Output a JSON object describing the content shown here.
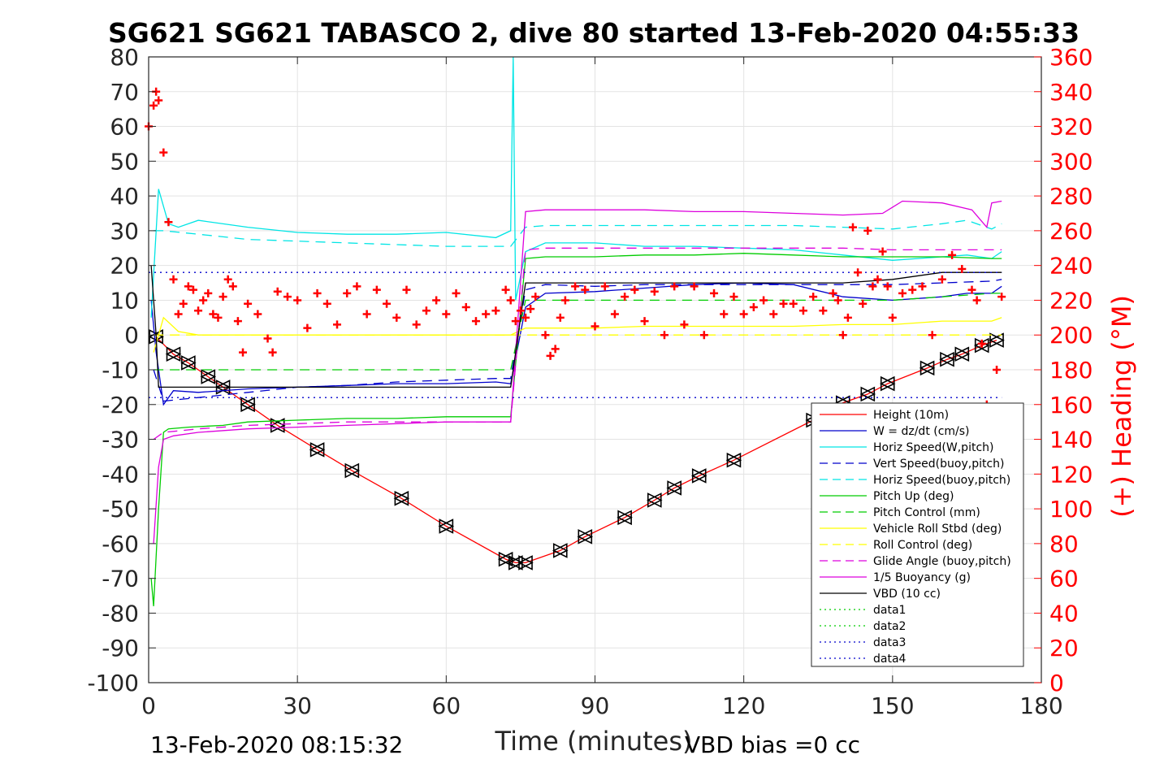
{
  "chart_data": {
    "type": "line",
    "title": "SG621 SG621 TABASCO 2, dive 80 started 13-Feb-2020 04:55:33",
    "xlabel": "Time (minutes)",
    "ylabel": "",
    "y2label": "(+) Heading (°M)",
    "xlim": [
      0,
      180
    ],
    "ylim": [
      -100,
      80
    ],
    "y2lim": [
      0,
      360
    ],
    "xticks": [
      "0",
      "30",
      "60",
      "90",
      "120",
      "150",
      "180"
    ],
    "yticks": [
      "80",
      "70",
      "60",
      "50",
      "40",
      "30",
      "20",
      "10",
      "0",
      "-10",
      "-20",
      "-30",
      "-40",
      "-50",
      "-60",
      "-70",
      "-80",
      "-90",
      "-100"
    ],
    "y2ticks": [
      "360",
      "340",
      "320",
      "300",
      "280",
      "260",
      "240",
      "220",
      "200",
      "180",
      "160",
      "140",
      "120",
      "100",
      "80",
      "60",
      "40",
      "20",
      "0"
    ],
    "grid": true,
    "legend_position": "bottom-right",
    "footer_left": "13-Feb-2020 08:15:32",
    "footer_right": "VBD bias =0 cc",
    "series": [
      {
        "name": "Height (10m)",
        "color": "#ff0000",
        "style": "solid",
        "marker": "triangle",
        "x": [
          1.5,
          5,
          8,
          12,
          15,
          20,
          26,
          34,
          41,
          51,
          60,
          72,
          74,
          76,
          83,
          88,
          96,
          102,
          106,
          111,
          118,
          134,
          140,
          145,
          149,
          157,
          161,
          164,
          168,
          171
        ],
        "y": [
          -0.5,
          -5.5,
          -8,
          -12,
          -15,
          -20,
          -26,
          -33,
          -39,
          -47,
          -55,
          -64.5,
          -65.5,
          -65.5,
          -62,
          -58,
          -52.5,
          -47.5,
          -44,
          -40.5,
          -36,
          -24.5,
          -19.5,
          -17,
          -14,
          -9.5,
          -7,
          -5.5,
          -3,
          -1.5
        ]
      },
      {
        "name": "W = dz/dt (cm/s)",
        "color": "#0000cc",
        "style": "solid",
        "x": [
          0.5,
          1.5,
          3,
          5,
          10,
          20,
          30,
          40,
          50,
          60,
          70,
          73,
          76,
          80,
          90,
          100,
          110,
          120,
          130,
          140,
          150,
          160,
          165,
          170,
          172
        ],
        "y": [
          10,
          -5,
          -20,
          -16,
          -16.5,
          -15.5,
          -15,
          -14.5,
          -14,
          -14,
          -13.5,
          -14,
          8,
          12,
          12.5,
          13.5,
          14.5,
          15,
          14.5,
          11,
          10,
          11,
          12,
          12,
          14
        ]
      },
      {
        "name": "Horiz Speed(W,pitch)",
        "color": "#00e5e5",
        "style": "solid",
        "x": [
          0.5,
          2,
          4,
          6,
          10,
          20,
          30,
          40,
          50,
          60,
          70,
          73,
          73.5,
          74,
          76,
          80,
          90,
          100,
          110,
          120,
          130,
          140,
          150,
          160,
          165,
          170,
          172
        ],
        "y": [
          5,
          42,
          32,
          31,
          33,
          31,
          29.5,
          29,
          29,
          29.5,
          28,
          30,
          80,
          10,
          24,
          26.5,
          26.5,
          25.5,
          25.5,
          25,
          24.5,
          23,
          21.5,
          22.5,
          23,
          22,
          24
        ]
      },
      {
        "name": "Vert Speed(buoy,pitch)",
        "color": "#0000cc",
        "style": "dashed",
        "x": [
          1,
          3,
          10,
          20,
          30,
          40,
          50,
          60,
          70,
          72,
          73,
          76,
          80,
          90,
          100,
          110,
          120,
          130,
          140,
          150,
          160,
          170,
          172
        ],
        "y": [
          -10,
          -19,
          -18,
          -16.5,
          -15,
          -14.5,
          -13.5,
          -13,
          -12.5,
          -12.5,
          -12.5,
          13,
          14.5,
          14,
          14.5,
          14.5,
          14.5,
          14.5,
          14.5,
          14.5,
          15,
          15.5,
          16
        ]
      },
      {
        "name": "Horiz Speed(buoy,pitch)",
        "color": "#00e5e5",
        "style": "dashed",
        "x": [
          1,
          3,
          10,
          20,
          30,
          40,
          50,
          60,
          70,
          72,
          73,
          76,
          80,
          90,
          100,
          110,
          120,
          130,
          140,
          150,
          160,
          165,
          170,
          172
        ],
        "y": [
          30,
          30,
          29,
          27.5,
          27,
          26.5,
          26,
          25.5,
          25.5,
          25.5,
          25.5,
          31,
          31.5,
          31.5,
          31.5,
          31.5,
          31.5,
          31.5,
          31,
          30.5,
          32,
          33,
          30.5,
          32
        ]
      },
      {
        "name": "Pitch Up (deg)",
        "color": "#00cc00",
        "style": "solid",
        "x": [
          0.5,
          1,
          2,
          3,
          4,
          8,
          15,
          20,
          30,
          40,
          50,
          60,
          70,
          72,
          73,
          76,
          80,
          90,
          100,
          110,
          120,
          130,
          140,
          150,
          160,
          170,
          172
        ],
        "y": [
          -70,
          -78,
          -50,
          -28,
          -27,
          -26.5,
          -26,
          -25,
          -24.5,
          -24,
          -24,
          -23.5,
          -23.5,
          -23.5,
          -23.5,
          22,
          22.5,
          22.5,
          23,
          23,
          23.5,
          23,
          22.5,
          22.5,
          22.5,
          22,
          22
        ]
      },
      {
        "name": "Pitch Control (mm)",
        "color": "#00cc00",
        "style": "dashed",
        "x": [
          1,
          10,
          30,
          50,
          70,
          73,
          76,
          90,
          110,
          130,
          150,
          160,
          170,
          172
        ],
        "y": [
          -10,
          -10,
          -10,
          -10,
          -10,
          -10,
          10,
          10,
          10,
          10,
          10,
          11,
          12,
          12
        ]
      },
      {
        "name": "Vehicle Roll Stbd (deg)",
        "color": "#ffff00",
        "style": "solid",
        "x": [
          1,
          3,
          6,
          10,
          20,
          30,
          40,
          50,
          60,
          70,
          73,
          76,
          80,
          90,
          100,
          110,
          120,
          130,
          140,
          150,
          160,
          165,
          170,
          172
        ],
        "y": [
          -5,
          5,
          1,
          0,
          0,
          0,
          0,
          0,
          0,
          0,
          0,
          2,
          2,
          2,
          2.5,
          2.5,
          2.5,
          2.5,
          3,
          3,
          4,
          4,
          4,
          5
        ]
      },
      {
        "name": "Roll Control (deg)",
        "color": "#ffff00",
        "style": "dashed",
        "x": [
          1,
          20,
          40,
          60,
          73,
          76,
          100,
          130,
          150,
          160,
          170,
          172
        ],
        "y": [
          0,
          0,
          0,
          0,
          0,
          0,
          0,
          0,
          0,
          0,
          0,
          0
        ]
      },
      {
        "name": "Glide Angle (buoy,pitch)",
        "color": "#dd00dd",
        "style": "dashed",
        "x": [
          1,
          3,
          10,
          20,
          30,
          40,
          50,
          60,
          70,
          72,
          73,
          76,
          80,
          90,
          100,
          110,
          120,
          130,
          140,
          150,
          160,
          170,
          172
        ],
        "y": [
          -30,
          -28,
          -27,
          -26,
          -25.5,
          -25,
          -25,
          -25,
          -25,
          -25,
          -25,
          24.5,
          25,
          25,
          25,
          25,
          25,
          25,
          25,
          24.5,
          24.5,
          24.5,
          24.5
        ]
      },
      {
        "name": "1/5 Buoyancy (g)",
        "color": "#dd00dd",
        "style": "solid",
        "x": [
          1,
          2,
          3,
          5,
          10,
          20,
          30,
          40,
          50,
          60,
          70,
          72,
          73,
          76,
          80,
          90,
          100,
          110,
          120,
          130,
          140,
          148,
          152,
          160,
          166,
          169,
          170,
          172
        ],
        "y": [
          -60,
          -38,
          -30,
          -29,
          -28,
          -27,
          -26.5,
          -26,
          -25.5,
          -25,
          -25,
          -25,
          -25,
          35.5,
          36,
          36,
          36,
          35.5,
          35.5,
          35,
          34.5,
          35,
          38.5,
          38,
          36,
          31,
          38,
          38.5
        ]
      },
      {
        "name": "VBD (10 cc)",
        "color": "#000000",
        "style": "solid",
        "x": [
          0.5,
          1.5,
          2,
          10,
          30,
          50,
          70,
          73,
          76,
          80,
          90,
          100,
          110,
          120,
          130,
          140,
          150,
          160,
          165,
          170,
          172
        ],
        "y": [
          20,
          0,
          -15,
          -15,
          -15,
          -15,
          -15,
          -15,
          15,
          15,
          15,
          15,
          15,
          15,
          15,
          15,
          16,
          18,
          18,
          18,
          18
        ]
      },
      {
        "name": "data1",
        "color": "#00cc00",
        "style": "dotted",
        "x": [],
        "y": []
      },
      {
        "name": "data2",
        "color": "#00cc00",
        "style": "dotted",
        "x": [],
        "y": []
      },
      {
        "name": "data3",
        "color": "#0000cc",
        "style": "dotted",
        "x": [
          0,
          172
        ],
        "y": [
          18,
          18
        ]
      },
      {
        "name": "data4",
        "color": "#0000cc",
        "style": "dotted",
        "x": [
          0,
          172
        ],
        "y": [
          -18,
          -18
        ]
      }
    ],
    "heading": {
      "axis": "right",
      "color": "#ff0000",
      "marker": "plus",
      "x": [
        0,
        1,
        1.5,
        2,
        3,
        4,
        5,
        6,
        7,
        8,
        9,
        10,
        11,
        12,
        13,
        14,
        15,
        16,
        17,
        18,
        19,
        20,
        22,
        24,
        25,
        26,
        28,
        30,
        32,
        34,
        36,
        38,
        40,
        42,
        44,
        46,
        48,
        50,
        52,
        54,
        56,
        58,
        60,
        62,
        64,
        66,
        68,
        70,
        72,
        73,
        74,
        75,
        76,
        77,
        78,
        80,
        81,
        82,
        83,
        84,
        86,
        88,
        90,
        92,
        94,
        96,
        98,
        100,
        102,
        104,
        106,
        108,
        110,
        112,
        114,
        116,
        118,
        120,
        122,
        124,
        126,
        128,
        130,
        132,
        134,
        136,
        138,
        139,
        140,
        141,
        142,
        143,
        144,
        145,
        146,
        147,
        148,
        149,
        150,
        152,
        154,
        156,
        158,
        160,
        162,
        164,
        166,
        167,
        168,
        169,
        170,
        171,
        172
      ],
      "y": [
        320,
        332,
        340,
        335,
        305,
        265,
        232,
        212,
        218,
        228,
        226,
        214,
        220,
        224,
        212,
        210,
        222,
        232,
        228,
        208,
        190,
        218,
        212,
        198,
        190,
        225,
        222,
        220,
        204,
        224,
        218,
        206,
        224,
        228,
        212,
        226,
        218,
        210,
        226,
        206,
        214,
        220,
        212,
        224,
        216,
        208,
        212,
        214,
        226,
        220,
        208,
        214,
        210,
        215,
        222,
        200,
        188,
        192,
        210,
        220,
        228,
        226,
        205,
        228,
        212,
        222,
        226,
        208,
        225,
        200,
        228,
        206,
        228,
        200,
        224,
        212,
        222,
        212,
        216,
        220,
        212,
        218,
        218,
        214,
        222,
        214,
        224,
        220,
        200,
        210,
        262,
        236,
        218,
        260,
        228,
        232,
        248,
        228,
        210,
        224,
        226,
        228,
        200,
        232,
        246,
        238,
        226,
        220,
        195,
        160,
        150,
        180,
        222
      ]
    }
  }
}
